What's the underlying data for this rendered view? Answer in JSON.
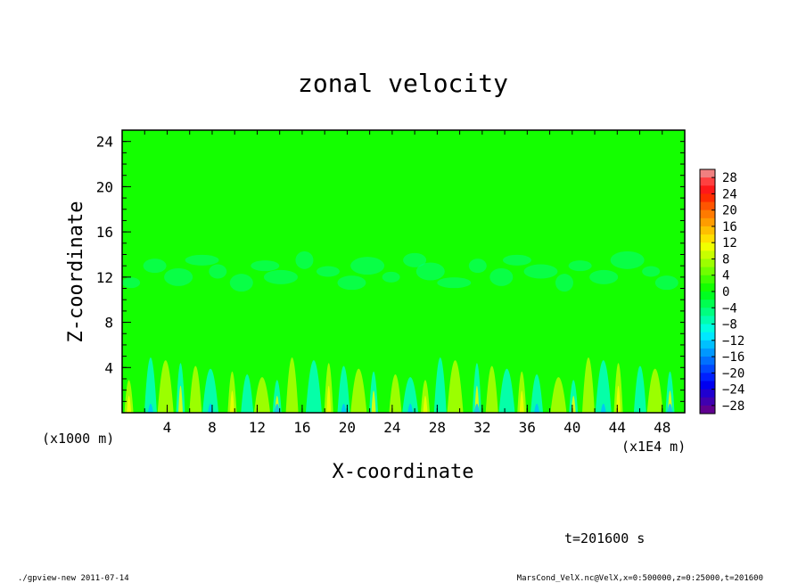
{
  "chart_data": {
    "type": "heatmap",
    "title": "zonal velocity",
    "xlabel": "X-coordinate",
    "ylabel": "Z-coordinate",
    "x_unit_note": "(x1E4 m)",
    "z_unit_note": "(x1000 m)",
    "xlim": [
      0,
      50
    ],
    "ylim": [
      0,
      25
    ],
    "x_ticks": [
      4,
      8,
      12,
      16,
      20,
      24,
      28,
      32,
      36,
      40,
      44,
      48
    ],
    "y_ticks": [
      4,
      8,
      12,
      16,
      20,
      24
    ],
    "colorbar": {
      "ticks": [
        28,
        24,
        20,
        16,
        12,
        8,
        4,
        0,
        -4,
        -8,
        -12,
        -16,
        -20,
        -24,
        -28
      ],
      "bins": [
        {
          "lo": 28,
          "hi": 30,
          "color": "#f08080"
        },
        {
          "lo": 26,
          "hi": 28,
          "color": "#ff4040"
        },
        {
          "lo": 24,
          "hi": 26,
          "color": "#ff1818"
        },
        {
          "lo": 22,
          "hi": 24,
          "color": "#ff2c00"
        },
        {
          "lo": 20,
          "hi": 22,
          "color": "#ff5500"
        },
        {
          "lo": 18,
          "hi": 20,
          "color": "#ff7a00"
        },
        {
          "lo": 16,
          "hi": 18,
          "color": "#ff9c00"
        },
        {
          "lo": 14,
          "hi": 16,
          "color": "#ffbf00"
        },
        {
          "lo": 12,
          "hi": 14,
          "color": "#ffe000"
        },
        {
          "lo": 10,
          "hi": 12,
          "color": "#f0ff00"
        },
        {
          "lo": 8,
          "hi": 10,
          "color": "#c8ff00"
        },
        {
          "lo": 6,
          "hi": 8,
          "color": "#9cff00"
        },
        {
          "lo": 4,
          "hi": 6,
          "color": "#70ff00"
        },
        {
          "lo": 2,
          "hi": 4,
          "color": "#40ff00"
        },
        {
          "lo": 0,
          "hi": 2,
          "color": "#14ff00"
        },
        {
          "lo": -2,
          "hi": 0,
          "color": "#00ff20"
        },
        {
          "lo": -4,
          "hi": -2,
          "color": "#00ff50"
        },
        {
          "lo": -6,
          "hi": -4,
          "color": "#00ff80"
        },
        {
          "lo": -8,
          "hi": -6,
          "color": "#00ffb0"
        },
        {
          "lo": -10,
          "hi": -8,
          "color": "#00ffe0"
        },
        {
          "lo": -12,
          "hi": -10,
          "color": "#00e8ff"
        },
        {
          "lo": -14,
          "hi": -12,
          "color": "#00c0ff"
        },
        {
          "lo": -16,
          "hi": -14,
          "color": "#0098ff"
        },
        {
          "lo": -18,
          "hi": -16,
          "color": "#0070ff"
        },
        {
          "lo": -20,
          "hi": -18,
          "color": "#0048ff"
        },
        {
          "lo": -22,
          "hi": -20,
          "color": "#0020ff"
        },
        {
          "lo": -24,
          "hi": -22,
          "color": "#0000f0"
        },
        {
          "lo": -26,
          "hi": -24,
          "color": "#2000d0"
        },
        {
          "lo": -28,
          "hi": -26,
          "color": "#4000b0"
        },
        {
          "lo": -30,
          "hi": -28,
          "color": "#600090"
        }
      ]
    },
    "field_colors": {
      "upper_green": "#14ff00",
      "mid_cyan": "#00ff80",
      "low_yellow": "#c8ff00",
      "low_yellow_peak": "#f0ff00",
      "low_cyan": "#00ffe0",
      "bottom_blue": "#00c0ff"
    }
  },
  "annotations": {
    "time_label": "t=201600 s",
    "footer_left": "./gpview-new  2011-07-14",
    "footer_right": "MarsCond_VelX.nc@VelX,x=0:500000,z=0:25000,t=201600"
  }
}
